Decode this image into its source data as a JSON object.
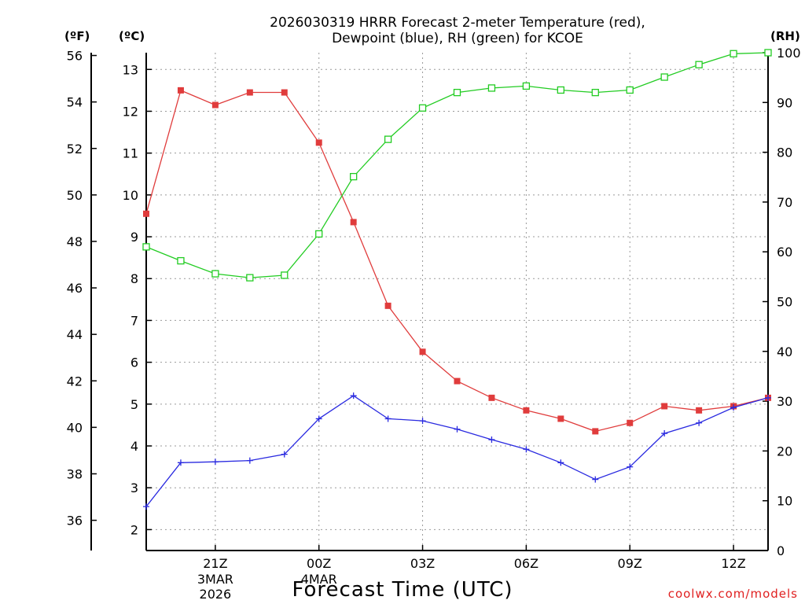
{
  "chart_data": {
    "type": "line",
    "title": "2026030319 HRRR Forecast 2-meter Temperature (red),",
    "title2": "Dewpoint (blue), RH (green) for KCOE",
    "xlabel": "Forecast Time (UTC)",
    "credit": "coolwx.com/models",
    "unit_f": "(ºF)",
    "unit_c": "(ºC)",
    "unit_rh": "(RH)",
    "x_ticks": [
      {
        "hour": 2,
        "label": "21Z",
        "label2": "3MAR",
        "label3": "2026"
      },
      {
        "hour": 5,
        "label": "00Z",
        "label2": "4MAR",
        "label3": ""
      },
      {
        "hour": 8,
        "label": "03Z",
        "label2": "",
        "label3": ""
      },
      {
        "hour": 11,
        "label": "06Z",
        "label2": "",
        "label3": ""
      },
      {
        "hour": 14,
        "label": "09Z",
        "label2": "",
        "label3": ""
      },
      {
        "hour": 17,
        "label": "12Z",
        "label2": "",
        "label3": ""
      }
    ],
    "xlim": [
      0,
      18
    ],
    "ylim_c": [
      1.5,
      13.4
    ],
    "ylim_f": [
      34.7,
      56.12
    ],
    "ylim_rh": [
      0,
      100
    ],
    "yticks_f": [
      36,
      38,
      40,
      42,
      44,
      46,
      48,
      50,
      52,
      54,
      56
    ],
    "yticks_c": [
      2,
      3,
      4,
      5,
      6,
      7,
      8,
      9,
      10,
      11,
      12,
      13
    ],
    "yticks_rh": [
      0,
      10,
      20,
      30,
      40,
      50,
      60,
      70,
      80,
      90,
      100
    ],
    "series": [
      {
        "name": "Temperature",
        "color": "#e03c3c",
        "marker": "square-filled",
        "axis": "c",
        "x": [
          0,
          1,
          2,
          3,
          4,
          5,
          6,
          7,
          8,
          9,
          10,
          11,
          12,
          13,
          14,
          15,
          16,
          17,
          18
        ],
        "values": [
          9.55,
          12.5,
          12.15,
          12.45,
          12.45,
          11.25,
          9.35,
          7.35,
          6.25,
          5.55,
          5.15,
          4.85,
          4.65,
          4.35,
          4.55,
          4.95,
          4.85,
          4.95,
          5.15
        ]
      },
      {
        "name": "Dewpoint",
        "color": "#2a2ae0",
        "marker": "plus",
        "axis": "c",
        "x": [
          0,
          1,
          2,
          3,
          4,
          5,
          6,
          7,
          8,
          9,
          10,
          11,
          12,
          13,
          14,
          15,
          16,
          17,
          18
        ],
        "values": [
          2.55,
          3.6,
          3.62,
          3.65,
          3.8,
          4.65,
          5.2,
          4.65,
          4.6,
          4.4,
          4.15,
          3.92,
          3.6,
          3.2,
          3.5,
          4.3,
          4.55,
          4.92,
          5.15
        ]
      },
      {
        "name": "RH",
        "color": "#22cc22",
        "marker": "square-open",
        "axis": "rh",
        "x": [
          0,
          1,
          2,
          3,
          4,
          5,
          6,
          7,
          8,
          9,
          10,
          11,
          12,
          13,
          14,
          15,
          16,
          17,
          18
        ],
        "values": [
          61,
          58.2,
          55.6,
          54.8,
          55.3,
          63.6,
          75.1,
          82.6,
          88.9,
          92,
          92.9,
          93.3,
          92.5,
          92,
          92.5,
          95.1,
          97.6,
          99.8,
          100
        ]
      }
    ]
  }
}
